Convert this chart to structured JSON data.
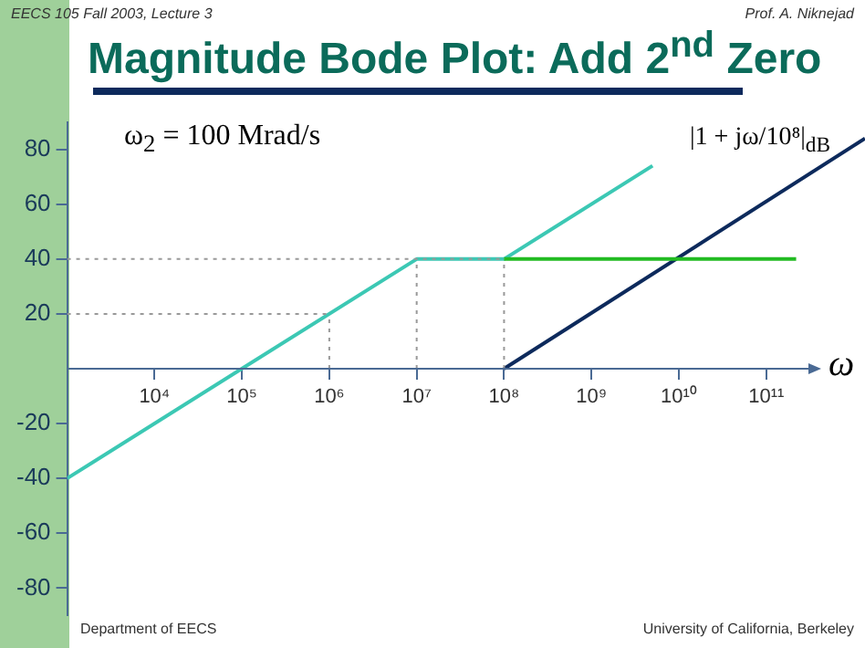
{
  "chart_data": {
    "type": "line",
    "title": "Magnitude Bode Plot: Add 2$^{nd}$ Zero",
    "xlabel": "ω",
    "annotations": [
      "EECS 105 Fall 2003, Lecture 3",
      "Prof. A. Niknejad",
      "ω$_{2}$ = 100 Mrad/s",
      "|1 + jω/10⁸|$_{dB}$",
      "Department of EECS",
      "University of California, Berkeley"
    ],
    "series": [
      {
        "color": "#999999",
        "line_style": "dotted",
        "x": [
          1000,
          100000000
        ],
        "values": [
          40,
          40
        ]
      },
      {
        "color": "#999999",
        "line_style": "dotted",
        "x": [
          1000,
          1000000
        ],
        "values": [
          20,
          20
        ]
      },
      {
        "color": "#999999",
        "line_style": "dotted",
        "x": [
          1000000,
          1000000
        ],
        "values": [
          0,
          20
        ]
      },
      {
        "color": "#999999",
        "line_style": "dotted",
        "x": [
          10000000,
          10000000
        ],
        "values": [
          0,
          40
        ]
      },
      {
        "color": "#999999",
        "line_style": "dotted",
        "x": [
          100000000,
          100000000
        ],
        "values": [
          0,
          40
        ]
      },
      {
        "color": "#22bb22",
        "x": [
          100000000,
          220000000000
        ],
        "values": [
          40,
          40
        ]
      },
      {
        "color": "#0d2a5c",
        "x": [
          100000000,
          1350000000000
        ],
        "values": [
          0,
          84
        ]
      },
      {
        "color": "#3cc8b4",
        "x": [
          1000,
          10000000,
          100000000,
          5000000000
        ],
        "values": [
          -40,
          40,
          40,
          74
        ]
      }
    ],
    "log": "x",
    "xlim": [
      1000,
      1350000000000
    ],
    "xticks": [
      {
        "value": 10000,
        "label": "10⁴"
      },
      {
        "value": 100000,
        "label": "10⁵"
      },
      {
        "value": 1000000,
        "label": "10⁶"
      },
      {
        "value": 10000000,
        "label": "10⁷"
      },
      {
        "value": 100000000,
        "label": "10⁸"
      },
      {
        "value": 1000000000,
        "label": "10⁹"
      },
      {
        "value": 10000000000,
        "label": "10¹⁰"
      },
      {
        "value": 100000000000,
        "label": "10¹¹"
      }
    ],
    "ylim": [
      -90,
      90
    ],
    "yticks": [
      -80,
      -60,
      -40,
      -20,
      20,
      40,
      60,
      80
    ],
    "grid": false,
    "legend": false,
    "marker": "none",
    "line_style": "solid"
  }
}
